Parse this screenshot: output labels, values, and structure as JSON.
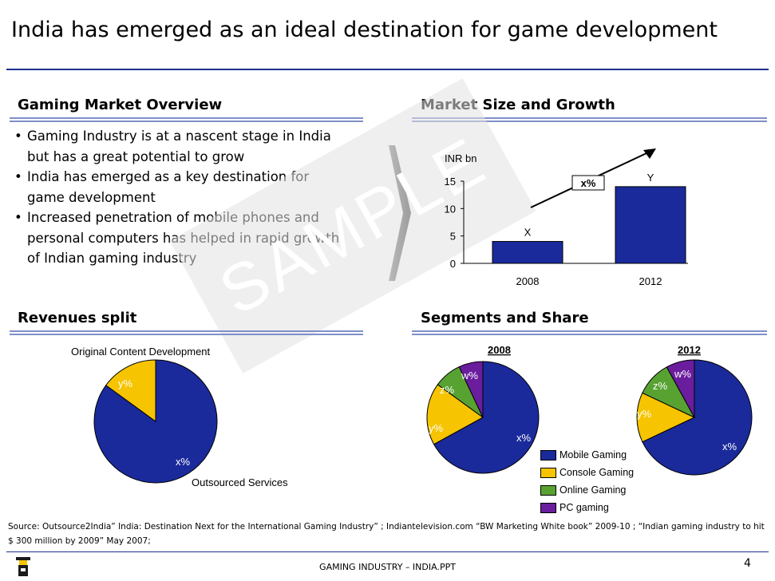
{
  "page": {
    "title": "India has emerged as an ideal destination for game development",
    "footer": "GAMING INDUSTRY – INDIA.PPT",
    "page_number": "4",
    "watermark": "SAMPLE",
    "source": "Source: Outsource2India” India: Destination Next for the International Gaming Industry” ; Indiantelevision.com “BW Marketing White book”  2009-10 ; “Indian gaming industry to  hit $ 300 million by 2009”  May 2007;"
  },
  "overview": {
    "heading": "Gaming Market Overview",
    "bullets": [
      "Gaming Industry is at a nascent stage in India but has a great potential to grow",
      "India has  emerged as a key destination for game development",
      "Increased penetration of mobile phones and personal computers has helped in rapid growth of Indian gaming industry"
    ]
  },
  "market_size": {
    "heading": "Market Size and Growth"
  },
  "revenues": {
    "heading": "Revenues split"
  },
  "segments": {
    "heading": "Segments and Share"
  },
  "colors": {
    "navy": "#1a2a9b",
    "yellow": "#f6c400",
    "green": "#58a232",
    "purple": "#6a1d9c",
    "heading_rule": "#7f8fc8"
  },
  "chart_data": [
    {
      "type": "bar",
      "ylabel": "INR bn",
      "categories": [
        "2008",
        "2012"
      ],
      "values": [
        4,
        14
      ],
      "data_labels": [
        "X",
        "Y"
      ],
      "growth_label": "x%",
      "yticks": [
        "0",
        "5",
        "10",
        "15"
      ],
      "ylim": [
        0,
        15
      ]
    },
    {
      "type": "pie",
      "labels": [
        "x%",
        "y%"
      ],
      "values": [
        85,
        15
      ],
      "callouts": [
        "Outsourced Services",
        "Original Content Development"
      ]
    },
    {
      "type": "pie",
      "title": "2008",
      "labels": [
        "x%",
        "y%",
        "z%",
        "w%"
      ],
      "values": [
        67,
        18,
        8,
        7
      ]
    },
    {
      "type": "pie",
      "title": "2012",
      "labels": [
        "x%",
        "y%",
        "z%",
        "w%"
      ],
      "values": [
        68,
        14,
        10,
        8
      ]
    }
  ],
  "legend": [
    "Mobile Gaming",
    "Console Gaming",
    "Online Gaming",
    "PC gaming"
  ]
}
